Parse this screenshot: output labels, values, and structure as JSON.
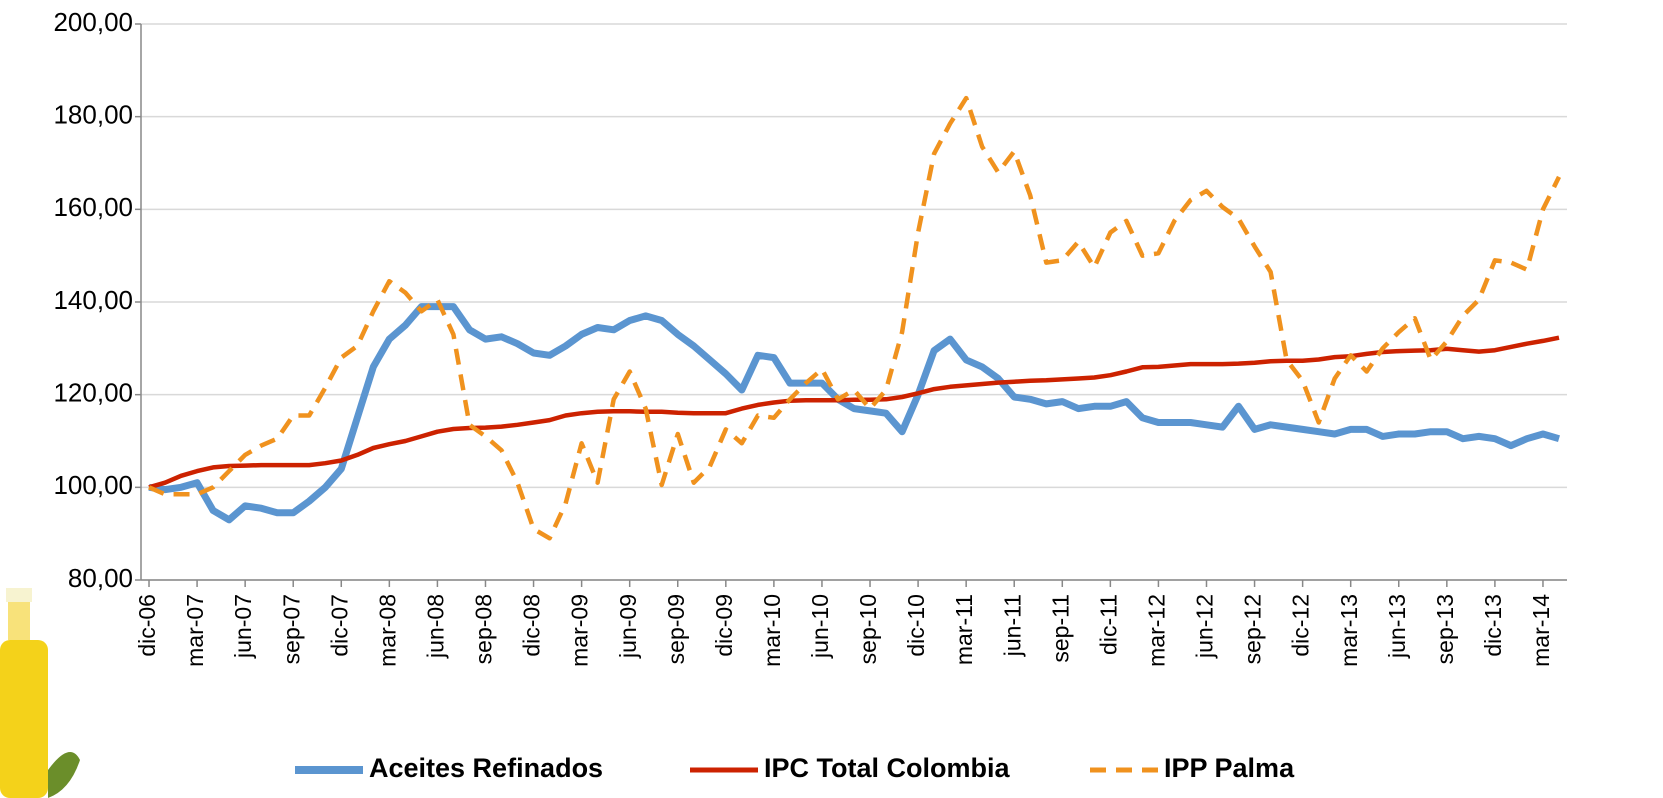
{
  "chart_data": {
    "type": "line",
    "categories": [
      "dic-06",
      null,
      null,
      "mar-07",
      null,
      null,
      "jun-07",
      null,
      null,
      "sep-07",
      null,
      null,
      "dic-07",
      null,
      null,
      "mar-08",
      null,
      null,
      "jun-08",
      null,
      null,
      "sep-08",
      null,
      null,
      "dic-08",
      null,
      null,
      "mar-09",
      null,
      null,
      "jun-09",
      null,
      null,
      "sep-09",
      null,
      null,
      "dic-09",
      null,
      null,
      "mar-10",
      null,
      null,
      "jun-10",
      null,
      null,
      "sep-10",
      null,
      null,
      "dic-10",
      null,
      null,
      "mar-11",
      null,
      null,
      "jun-11",
      null,
      null,
      "sep-11",
      null,
      null,
      "dic-11",
      null,
      null,
      "mar-12",
      null,
      null,
      "jun-12",
      null,
      null,
      "sep-12",
      null,
      null,
      "dic-12",
      null,
      null,
      "mar-13",
      null,
      null,
      "jun-13",
      null,
      null,
      "sep-13",
      null,
      null,
      "dic-13",
      null,
      null,
      "mar-14",
      null
    ],
    "series": [
      {
        "name": "Aceites Refinados",
        "color": "#5b95d0",
        "line_style": "solid",
        "values": [
          100,
          99.5,
          100,
          101,
          95,
          93,
          96,
          95.5,
          94.5,
          94.5,
          97,
          100,
          104,
          115,
          126,
          132,
          135,
          139,
          139,
          139,
          134,
          132,
          132.5,
          131,
          129,
          128.5,
          130.5,
          133,
          134.5,
          134,
          136,
          137,
          136,
          133,
          130.5,
          127.5,
          124.5,
          121,
          128.5,
          128,
          122.5,
          122.5,
          122.5,
          119,
          117,
          116.5,
          116,
          112,
          120,
          129.5,
          132,
          127.5,
          126,
          123.5,
          119.5,
          119,
          118,
          118.5,
          117,
          117.5,
          117.5,
          118.5,
          115,
          114,
          114,
          114,
          113.5,
          113,
          117.5,
          112.5,
          113.5,
          113,
          112.5,
          112,
          111.5,
          112.5,
          112.5,
          111,
          111.5,
          111.5,
          112,
          112,
          110.5,
          111,
          110.5,
          109,
          110.5,
          111.5,
          110.5
        ]
      },
      {
        "name": "IPC Total Colombia",
        "color": "#cc2200",
        "line_style": "solid",
        "values": [
          100,
          101,
          102.5,
          103.5,
          104.3,
          104.6,
          104.7,
          104.8,
          104.8,
          104.8,
          104.8,
          105.2,
          105.8,
          107,
          108.5,
          109.3,
          110,
          111,
          112,
          112.6,
          112.8,
          112.9,
          113.1,
          113.5,
          114,
          114.5,
          115.5,
          116,
          116.3,
          116.4,
          116.4,
          116.3,
          116.3,
          116.1,
          116,
          116,
          116,
          117,
          117.8,
          118.3,
          118.7,
          118.8,
          118.8,
          118.8,
          118.9,
          118.9,
          119,
          119.5,
          120.3,
          121.2,
          121.7,
          122,
          122.3,
          122.6,
          122.8,
          123,
          123.1,
          123.3,
          123.5,
          123.7,
          124.2,
          125,
          125.9,
          126,
          126.3,
          126.6,
          126.6,
          126.6,
          126.7,
          126.9,
          127.2,
          127.3,
          127.3,
          127.6,
          128.1,
          128.3,
          128.8,
          129.2,
          129.4,
          129.5,
          129.6,
          129.9,
          129.6,
          129.3,
          129.6,
          130.3,
          131,
          131.6,
          132.3
        ]
      },
      {
        "name": "IPP Palma",
        "color": "#f0921e",
        "line_style": "dashed",
        "values": [
          100,
          98.5,
          98.5,
          98.5,
          100,
          103.5,
          107,
          109,
          110.5,
          115.5,
          115.5,
          121.5,
          128,
          130.5,
          138,
          144.5,
          142,
          138,
          140.5,
          133,
          113.5,
          111,
          108,
          101,
          91,
          89,
          96.5,
          109.5,
          101,
          119,
          125,
          117,
          100.5,
          111.5,
          101,
          104.5,
          112.5,
          109.5,
          115.5,
          115,
          119,
          122.5,
          125.5,
          119,
          121,
          117,
          121,
          133.5,
          155,
          172,
          178.5,
          184,
          173.5,
          168,
          172.5,
          163,
          148.5,
          149,
          153,
          147.5,
          155,
          157.5,
          150,
          150.5,
          157.5,
          162,
          164,
          160.5,
          158,
          152,
          146.5,
          127.5,
          123,
          114,
          123.5,
          128.5,
          125,
          130,
          133.5,
          136.5,
          127.5,
          131.5,
          137,
          140.5,
          149,
          148.5,
          147,
          160,
          167
        ]
      }
    ],
    "ylim": [
      80,
      200
    ],
    "yticks": [
      {
        "value": 80,
        "label": "80,00"
      },
      {
        "value": 100,
        "label": "100,00"
      },
      {
        "value": 120,
        "label": "120,00"
      },
      {
        "value": 140,
        "label": "140,00"
      },
      {
        "value": 160,
        "label": "160,00"
      },
      {
        "value": 180,
        "label": "180,00"
      },
      {
        "value": 200,
        "label": "200,00"
      }
    ],
    "grid": true,
    "legend": "bottom"
  }
}
